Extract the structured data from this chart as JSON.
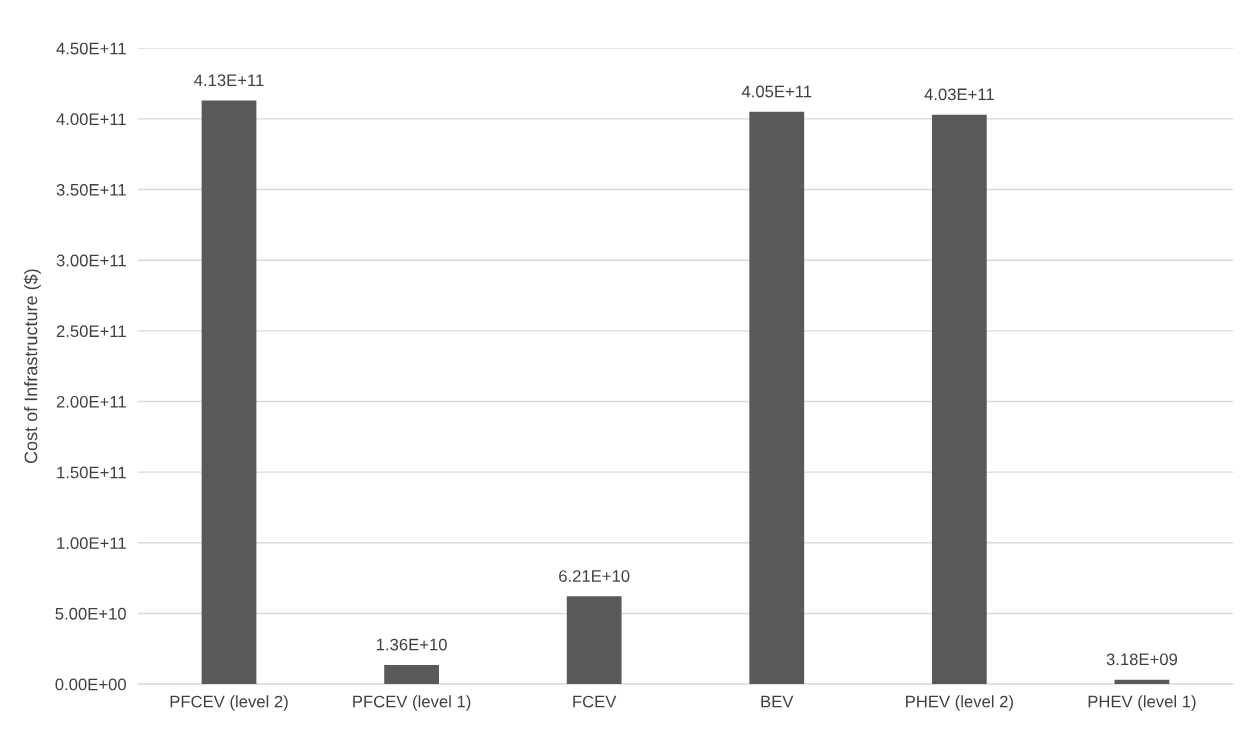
{
  "chart_data": {
    "type": "bar",
    "ylabel": "Cost of Infrastructure ($)",
    "categories": [
      "PFCEV (level 2)",
      "PFCEV (level 1)",
      "FCEV",
      "BEV",
      "PHEV (level 2)",
      "PHEV (level 1)"
    ],
    "values": [
      413000000000,
      13600000000,
      62100000000,
      405000000000,
      403000000000,
      3180000000
    ],
    "value_labels": [
      "4.13E+11",
      "1.36E+10",
      "6.21E+10",
      "4.05E+11",
      "4.03E+11",
      "3.18E+09"
    ],
    "color": "#595959",
    "ylim": [
      0,
      450000000000
    ],
    "yticks": [
      {
        "value": 0,
        "label": "0.00E+00"
      },
      {
        "value": 50000000000,
        "label": "5.00E+10"
      },
      {
        "value": 100000000000,
        "label": "1.00E+11"
      },
      {
        "value": 150000000000,
        "label": "1.50E+11"
      },
      {
        "value": 200000000000,
        "label": "2.00E+11"
      },
      {
        "value": 250000000000,
        "label": "2.50E+11"
      },
      {
        "value": 300000000000,
        "label": "3.00E+11"
      },
      {
        "value": 350000000000,
        "label": "3.50E+11"
      },
      {
        "value": 400000000000,
        "label": "4.00E+11"
      },
      {
        "value": 450000000000,
        "label": "4.50E+11"
      }
    ],
    "grid": "y"
  }
}
